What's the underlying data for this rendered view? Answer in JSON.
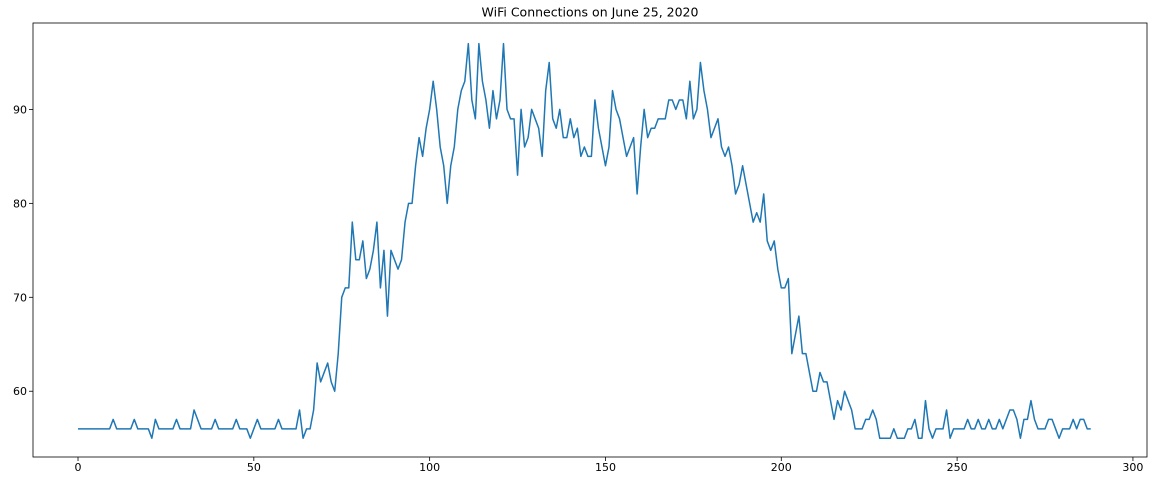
{
  "chart_data": {
    "type": "line",
    "title": "WiFi Connections on June 25, 2020",
    "color": "#1f77b4",
    "x": [
      0,
      1,
      2,
      3,
      4,
      5,
      6,
      7,
      8,
      9,
      10,
      11,
      12,
      13,
      14,
      15,
      16,
      17,
      18,
      19,
      20,
      21,
      22,
      23,
      24,
      25,
      26,
      27,
      28,
      29,
      30,
      31,
      32,
      33,
      34,
      35,
      36,
      37,
      38,
      39,
      40,
      41,
      42,
      43,
      44,
      45,
      46,
      47,
      48,
      49,
      50,
      51,
      52,
      53,
      54,
      55,
      56,
      57,
      58,
      59,
      60,
      61,
      62,
      63,
      64,
      65,
      66,
      67,
      68,
      69,
      70,
      71,
      72,
      73,
      74,
      75,
      76,
      77,
      78,
      79,
      80,
      81,
      82,
      83,
      84,
      85,
      86,
      87,
      88,
      89,
      90,
      91,
      92,
      93,
      94,
      95,
      96,
      97,
      98,
      99,
      100,
      101,
      102,
      103,
      104,
      105,
      106,
      107,
      108,
      109,
      110,
      111,
      112,
      113,
      114,
      115,
      116,
      117,
      118,
      119,
      120,
      121,
      122,
      123,
      124,
      125,
      126,
      127,
      128,
      129,
      130,
      131,
      132,
      133,
      134,
      135,
      136,
      137,
      138,
      139,
      140,
      141,
      142,
      143,
      144,
      145,
      146,
      147,
      148,
      149,
      150,
      151,
      152,
      153,
      154,
      155,
      156,
      157,
      158,
      159,
      160,
      161,
      162,
      163,
      164,
      165,
      166,
      167,
      168,
      169,
      170,
      171,
      172,
      173,
      174,
      175,
      176,
      177,
      178,
      179,
      180,
      181,
      182,
      183,
      184,
      185,
      186,
      187,
      188,
      189,
      190,
      191,
      192,
      193,
      194,
      195,
      196,
      197,
      198,
      199,
      200,
      201,
      202,
      203,
      204,
      205,
      206,
      207,
      208,
      209,
      210,
      211,
      212,
      213,
      214,
      215,
      216,
      217,
      218,
      219,
      220,
      221,
      222,
      223,
      224,
      225,
      226,
      227,
      228,
      229,
      230,
      231,
      232,
      233,
      234,
      235,
      236,
      237,
      238,
      239,
      240,
      241,
      242,
      243,
      244,
      245,
      246,
      247,
      248,
      249,
      250,
      251,
      252,
      253,
      254,
      255,
      256,
      257,
      258,
      259,
      260,
      261,
      262,
      263,
      264,
      265,
      266,
      267,
      268,
      269,
      270,
      271,
      272,
      273,
      274,
      275,
      276,
      277,
      278,
      279,
      280,
      281,
      282,
      283,
      284,
      285,
      286,
      287,
      288
    ],
    "values": [
      56,
      56,
      56,
      56,
      56,
      56,
      56,
      56,
      56,
      56,
      57,
      56,
      56,
      56,
      56,
      56,
      57,
      56,
      56,
      56,
      56,
      55,
      57,
      56,
      56,
      56,
      56,
      56,
      57,
      56,
      56,
      56,
      56,
      58,
      57,
      56,
      56,
      56,
      56,
      57,
      56,
      56,
      56,
      56,
      56,
      57,
      56,
      56,
      56,
      55,
      56,
      57,
      56,
      56,
      56,
      56,
      56,
      57,
      56,
      56,
      56,
      56,
      56,
      58,
      55,
      56,
      56,
      58,
      63,
      61,
      62,
      63,
      61,
      60,
      64,
      70,
      71,
      71,
      78,
      74,
      74,
      76,
      72,
      73,
      75,
      78,
      71,
      75,
      68,
      75,
      74,
      73,
      74,
      78,
      80,
      80,
      84,
      87,
      85,
      88,
      90,
      93,
      90,
      86,
      84,
      80,
      84,
      86,
      90,
      92,
      93,
      97,
      91,
      89,
      97,
      93,
      91,
      88,
      92,
      89,
      91,
      97,
      90,
      89,
      89,
      83,
      90,
      86,
      87,
      90,
      89,
      88,
      85,
      92,
      95,
      89,
      88,
      90,
      87,
      87,
      89,
      87,
      88,
      85,
      86,
      85,
      85,
      91,
      88,
      86,
      84,
      86,
      92,
      90,
      89,
      87,
      85,
      86,
      87,
      81,
      86,
      90,
      87,
      88,
      88,
      89,
      89,
      89,
      91,
      91,
      90,
      91,
      91,
      89,
      93,
      89,
      90,
      95,
      92,
      90,
      87,
      88,
      89,
      86,
      85,
      86,
      84,
      81,
      82,
      84,
      82,
      80,
      78,
      79,
      78,
      81,
      76,
      75,
      76,
      73,
      71,
      71,
      72,
      64,
      66,
      68,
      64,
      64,
      62,
      60,
      60,
      62,
      61,
      61,
      59,
      57,
      59,
      58,
      60,
      59,
      58,
      56,
      56,
      56,
      57,
      57,
      58,
      57,
      55,
      55,
      55,
      55,
      56,
      55,
      55,
      55,
      56,
      56,
      57,
      55,
      55,
      59,
      56,
      55,
      56,
      56,
      56,
      58,
      55,
      56,
      56,
      56,
      56,
      57,
      56,
      56,
      57,
      56,
      56,
      57,
      56,
      56,
      57,
      56,
      57,
      58,
      58,
      57,
      55,
      57,
      57,
      59,
      57,
      56,
      56,
      56,
      57,
      57,
      56,
      55,
      56,
      56,
      56,
      57,
      56,
      57,
      57,
      56,
      56
    ],
    "xlim": [
      -12.8,
      304
    ],
    "ylim": [
      53,
      99.2
    ],
    "xticks": [
      0,
      50,
      100,
      150,
      200,
      250,
      300
    ],
    "yticks": [
      60,
      70,
      80,
      90
    ]
  }
}
